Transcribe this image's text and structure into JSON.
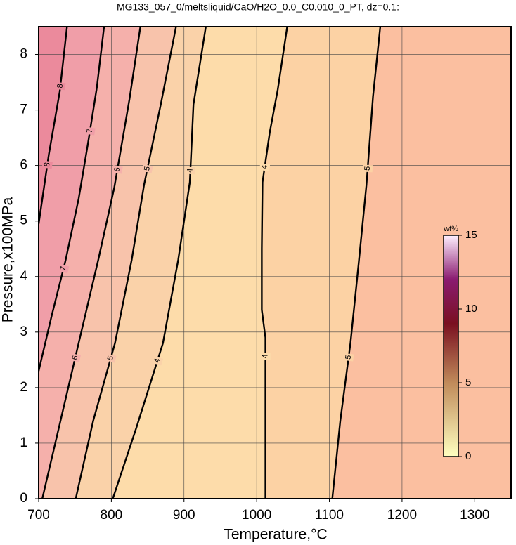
{
  "chart_data": {
    "type": "contour",
    "title": "MG133_057_0/meltsliquid/CaO/H2O_0.0_C0.010_0_PT, dz=0.1:",
    "xlabel": "Temperature,°C",
    "ylabel": "Pressure,x100MPa",
    "xlim": [
      700,
      1350
    ],
    "ylim": [
      0,
      8.5
    ],
    "xticks": [
      700,
      800,
      900,
      1000,
      1100,
      1200,
      1300
    ],
    "yticks": [
      0,
      1,
      2,
      3,
      4,
      5,
      6,
      7,
      8
    ],
    "grid": true,
    "background": "#fbbfa0",
    "contours": [
      {
        "level": 8,
        "fill": "#eb8a9c",
        "x": [
          700,
          714,
          729,
          739
        ],
        "y": [
          4.95,
          6.2,
          7.33,
          8.5
        ]
      },
      {
        "level": 7,
        "fill": "#f09ea8",
        "x": [
          700,
          718,
          737,
          755,
          768,
          780,
          790
        ],
        "y": [
          2.3,
          3.3,
          4.29,
          5.4,
          6.41,
          7.4,
          8.5
        ]
      },
      {
        "level": 6,
        "fill": "#f5b0ab",
        "x": [
          705,
          730,
          755,
          782,
          804,
          825,
          840
        ],
        "y": [
          0,
          1.4,
          2.8,
          4.3,
          5.6,
          7.2,
          8.5
        ]
      },
      {
        "level": 5,
        "fill": "#f8c3ab",
        "x": [
          751,
          775,
          805,
          828,
          845,
          868,
          889
        ],
        "y": [
          0,
          1.4,
          2.8,
          4.3,
          5.65,
          7.1,
          8.5
        ]
      },
      {
        "level": 4,
        "fill": "#fad2a9",
        "x": [
          802,
          835,
          871,
          892,
          908,
          913,
          930
        ],
        "y": [
          0,
          1.3,
          2.8,
          4.3,
          5.7,
          7.1,
          8.5
        ]
      },
      {
        "level": 4,
        "fill": "#fddcaa",
        "x": [
          1012,
          1012,
          1012,
          1007,
          1007,
          1008,
          1018,
          1029,
          1042
        ],
        "y": [
          0,
          1,
          2.9,
          3.4,
          4.5,
          5.7,
          6.6,
          7.37,
          8.5
        ]
      },
      {
        "level": 5,
        "fill": "#fcd2a4",
        "x": [
          1104,
          1115,
          1129,
          1140,
          1151,
          1160,
          1170
        ],
        "y": [
          0,
          1.4,
          2.8,
          4.2,
          5.65,
          7.24,
          8.5
        ]
      }
    ],
    "colorbar": {
      "label": "wt%",
      "clim": [
        0,
        15
      ],
      "ticks": [
        0,
        5,
        10,
        15
      ],
      "colormap": [
        {
          "value": 0,
          "color": "#ffffc0"
        },
        {
          "value": 5,
          "color": "#c08a5a"
        },
        {
          "value": 9,
          "color": "#7a1020"
        },
        {
          "value": 12,
          "color": "#8a1a70"
        },
        {
          "value": 15,
          "color": "#fff0ff"
        }
      ]
    }
  }
}
